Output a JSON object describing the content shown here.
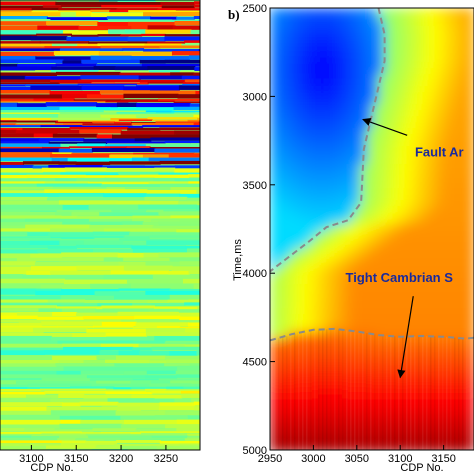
{
  "chart_data": [
    {
      "type": "heatmap",
      "panel": "a",
      "title": "",
      "xlabel": "CDP No.",
      "ylabel": "",
      "x_ticks": [
        3100,
        3150,
        3200,
        3250
      ],
      "xlim": [
        3065,
        3288
      ],
      "colormap": "jet",
      "content": "seismic section: strong reflections in upper part, weak continuous reflections below"
    },
    {
      "type": "heatmap",
      "panel": "b",
      "panel_label": "b)",
      "title": "",
      "xlabel": "CDP No.",
      "ylabel": "Time,ms",
      "x_ticks": [
        2950,
        3000,
        3050,
        3100,
        3150
      ],
      "y_ticks": [
        2500,
        3000,
        3500,
        4000,
        4500,
        5000
      ],
      "xlim": [
        2950,
        3185
      ],
      "ylim": [
        5000,
        2500
      ],
      "colormap": "jet",
      "annotations": [
        {
          "text": "Fault Ar",
          "arrow_to": [
            3057,
            3130
          ]
        },
        {
          "text": "Tight Cambrian S",
          "arrow_to": [
            3100,
            4590
          ]
        }
      ],
      "fault_boundary": {
        "style": "dashed",
        "color": "#8a8a8a",
        "points": [
          [
            3075,
            2500
          ],
          [
            3082,
            2650
          ],
          [
            3082,
            2800
          ],
          [
            3070,
            3050
          ],
          [
            3058,
            3300
          ],
          [
            3055,
            3600
          ],
          [
            3040,
            3700
          ],
          [
            3015,
            3740
          ],
          [
            2995,
            3820
          ],
          [
            2950,
            3990
          ]
        ]
      },
      "cambrian_boundary": {
        "style": "dashed",
        "color": "#8a8a8a",
        "points": [
          [
            2950,
            4380
          ],
          [
            2975,
            4345
          ],
          [
            3000,
            4320
          ],
          [
            3025,
            4315
          ],
          [
            3050,
            4330
          ],
          [
            3075,
            4350
          ],
          [
            3100,
            4360
          ],
          [
            3125,
            4355
          ],
          [
            3150,
            4360
          ],
          [
            3175,
            4370
          ],
          [
            3185,
            4365
          ]
        ]
      }
    }
  ]
}
